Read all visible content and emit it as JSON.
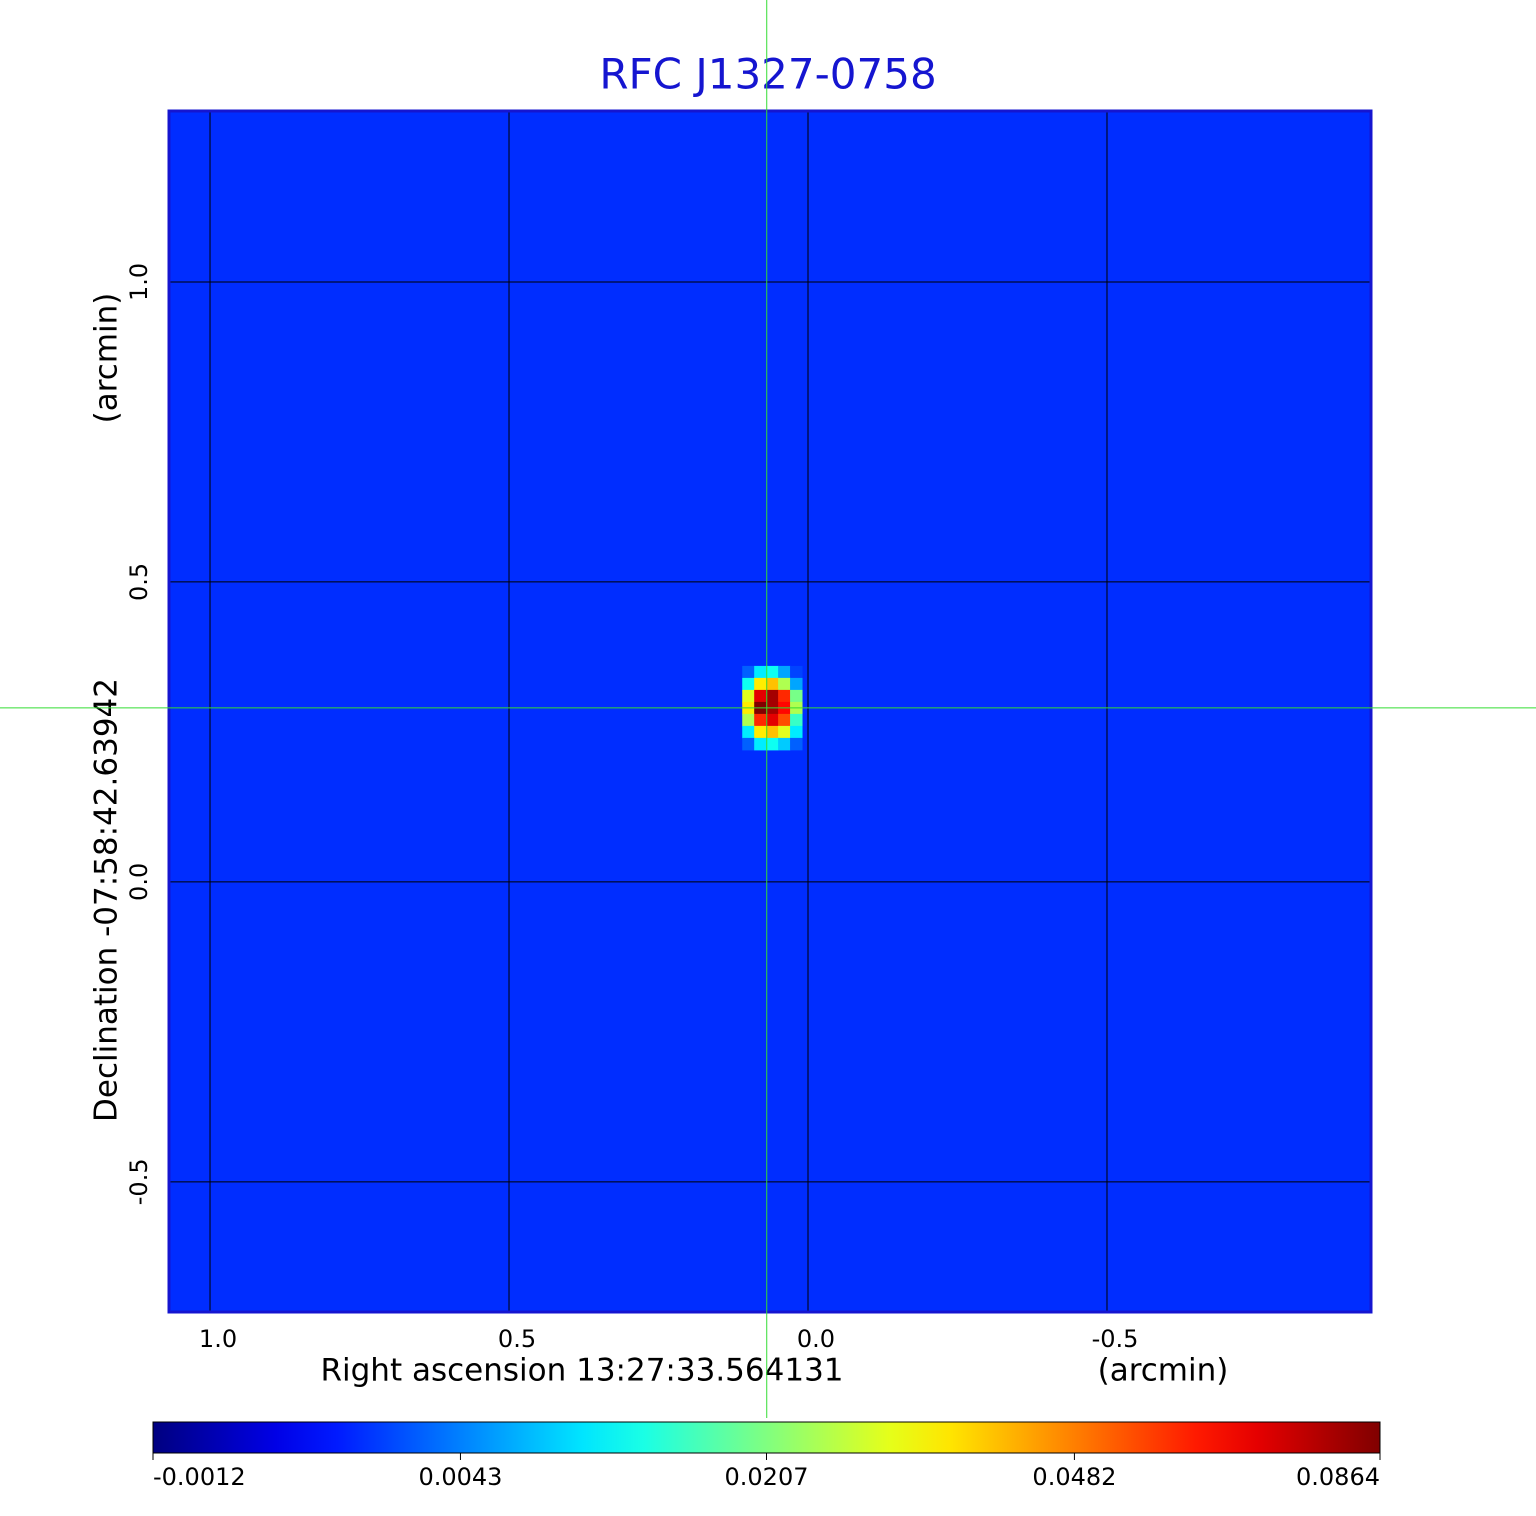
{
  "chart_data": {
    "type": "image",
    "title": "RFC J1327-0758",
    "x_label": "Right ascension  13:27:33.564131",
    "x_unit": "(arcmin)",
    "y_label": "Declination  -07:58:42.63942",
    "y_unit": "(arcmin)",
    "xlim": [
      1.0686,
      -0.9415
    ],
    "ylim": [
      -0.717,
      1.285
    ],
    "xticks": [
      {
        "value": 1.0,
        "label": "1.0"
      },
      0.5,
      {
        "value": 0.0,
        "label": "0.0"
      },
      -0.5
    ],
    "yticks": [
      -0.5,
      {
        "value": 0.0,
        "label": "0.0"
      },
      0.5,
      {
        "value": 1.0,
        "label": "1.0"
      }
    ],
    "grid": true,
    "colormap": "jet",
    "color_scale": "sqrt",
    "clim": [
      -0.0012,
      0.0864
    ],
    "cticks": [
      -0.0012,
      0.0043,
      0.0207,
      0.0482,
      0.0864
    ],
    "background_value": 0.0013,
    "marker": {
      "x": 0.069,
      "y": 0.29,
      "color": "#33dd33"
    },
    "image": {
      "x": [
        0.1,
        0.08,
        0.06,
        0.04,
        0.02
      ],
      "y": [
        0.35,
        0.33,
        0.31,
        0.29,
        0.27,
        0.25,
        0.23
      ],
      "values": [
        [
          0.003,
          0.01,
          0.012,
          0.006,
          0.002
        ],
        [
          0.012,
          0.035,
          0.04,
          0.025,
          0.006
        ],
        [
          0.03,
          0.07,
          0.08,
          0.06,
          0.02
        ],
        [
          0.035,
          0.0864,
          0.08,
          0.065,
          0.025
        ],
        [
          0.025,
          0.06,
          0.07,
          0.055,
          0.015
        ],
        [
          0.01,
          0.035,
          0.04,
          0.03,
          0.01
        ],
        [
          0.003,
          0.01,
          0.012,
          0.008,
          0.003
        ]
      ]
    }
  }
}
